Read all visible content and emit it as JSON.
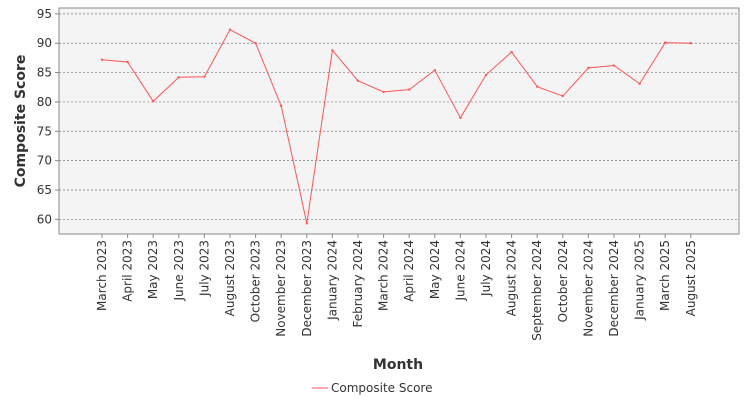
{
  "chart_data": {
    "type": "line",
    "title": "",
    "xlabel": "Month",
    "ylabel": "Composite Score",
    "ylim": [
      57.5,
      96
    ],
    "yticks": [
      60,
      65,
      70,
      75,
      80,
      85,
      90,
      95
    ],
    "grid": true,
    "legend_position": "bottom",
    "categories": [
      "March 2023",
      "April 2023",
      "May 2023",
      "June 2023",
      "July 2023",
      "August 2023",
      "October 2023",
      "November 2023",
      "December 2023",
      "January 2024",
      "February 2024",
      "March 2024",
      "April 2024",
      "May 2024",
      "June 2024",
      "July 2024",
      "August 2024",
      "September 2024",
      "October 2024",
      "November 2024",
      "December 2024",
      "January 2025",
      "March 2025",
      "August 2025"
    ],
    "series": [
      {
        "name": "Composite Score",
        "color": "#ff5555",
        "values": [
          87.2,
          86.8,
          80.1,
          84.2,
          84.3,
          92.3,
          90.0,
          79.3,
          59.3,
          88.8,
          83.6,
          81.7,
          82.1,
          85.4,
          77.3,
          84.6,
          88.5,
          82.6,
          81.0,
          85.8,
          86.2,
          83.1,
          90.1,
          90.0
        ]
      }
    ]
  }
}
